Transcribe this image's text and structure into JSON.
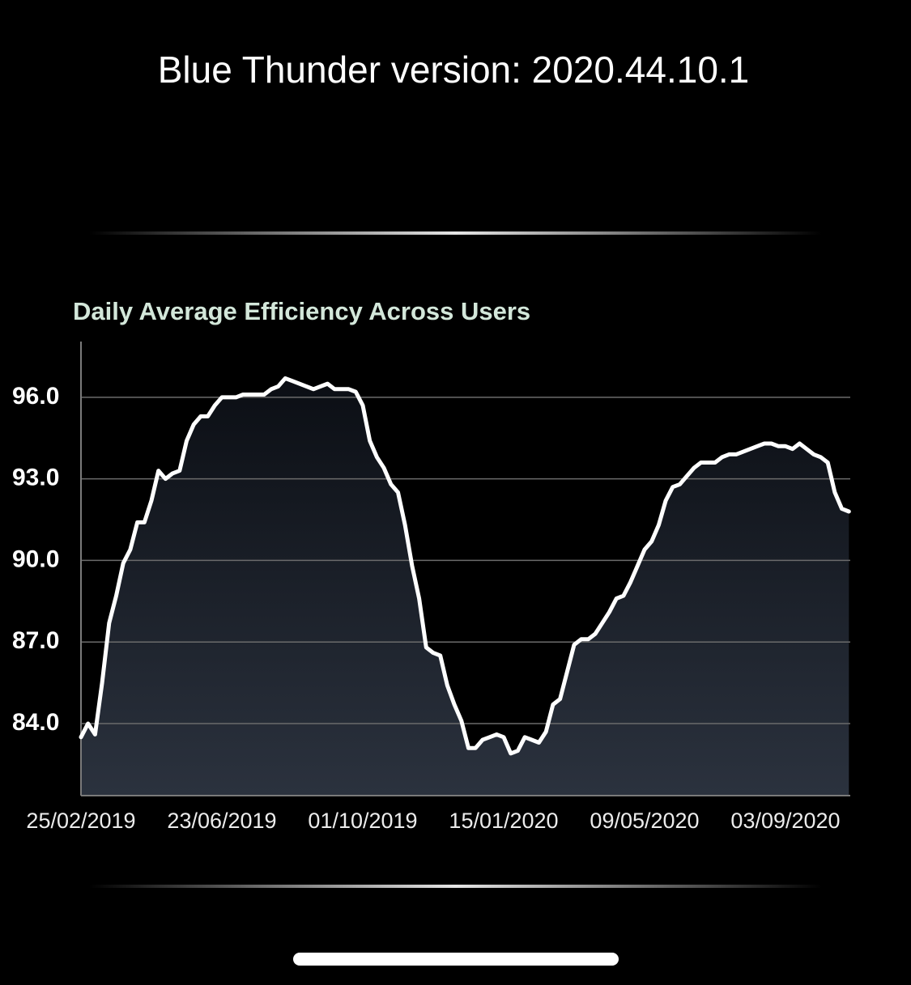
{
  "header": {
    "title": "Blue Thunder version: 2020.44.10.1"
  },
  "chart_data": {
    "type": "area",
    "title": "Daily Average Efficiency Across Users",
    "categories": [
      "25/02/2019",
      null,
      null,
      null,
      null,
      null,
      null,
      null,
      null,
      null,
      null,
      null,
      null,
      null,
      null,
      null,
      null,
      null,
      null,
      null,
      "23/06/2019",
      null,
      null,
      null,
      null,
      null,
      null,
      null,
      null,
      null,
      null,
      null,
      null,
      null,
      null,
      null,
      null,
      null,
      null,
      null,
      "01/10/2019",
      null,
      null,
      null,
      null,
      null,
      null,
      null,
      null,
      null,
      null,
      null,
      null,
      null,
      null,
      null,
      null,
      null,
      null,
      null,
      "15/01/2020",
      null,
      null,
      null,
      null,
      null,
      null,
      null,
      null,
      null,
      null,
      null,
      null,
      null,
      null,
      null,
      null,
      null,
      null,
      null,
      "09/05/2020",
      null,
      null,
      null,
      null,
      null,
      null,
      null,
      null,
      null,
      null,
      null,
      null,
      null,
      null,
      null,
      null,
      null,
      null,
      null,
      "03/09/2020",
      null,
      null,
      null,
      null,
      null,
      null,
      null,
      null,
      null
    ],
    "values": [
      83.5,
      84.0,
      83.6,
      85.5,
      87.7,
      88.7,
      89.9,
      90.4,
      91.4,
      91.4,
      92.2,
      93.3,
      93.0,
      93.2,
      93.3,
      94.4,
      95.0,
      95.3,
      95.3,
      95.7,
      96.0,
      96.0,
      96.0,
      96.1,
      96.1,
      96.1,
      96.1,
      96.3,
      96.4,
      96.7,
      96.6,
      96.5,
      96.4,
      96.3,
      96.4,
      96.5,
      96.3,
      96.3,
      96.3,
      96.2,
      95.7,
      94.4,
      93.8,
      93.4,
      92.8,
      92.5,
      91.3,
      89.8,
      88.6,
      86.8,
      86.6,
      86.5,
      85.4,
      84.7,
      84.1,
      83.1,
      83.1,
      83.4,
      83.5,
      83.6,
      83.5,
      82.9,
      83.0,
      83.5,
      83.4,
      83.3,
      83.7,
      84.7,
      84.9,
      85.9,
      86.9,
      87.1,
      87.1,
      87.3,
      87.7,
      88.1,
      88.6,
      88.7,
      89.2,
      89.8,
      90.4,
      90.7,
      91.3,
      92.2,
      92.7,
      92.8,
      93.1,
      93.4,
      93.6,
      93.6,
      93.6,
      93.8,
      93.9,
      93.9,
      94.0,
      94.1,
      94.2,
      94.3,
      94.3,
      94.2,
      94.2,
      94.1,
      94.3,
      94.1,
      93.9,
      93.8,
      93.6,
      92.5,
      91.9,
      91.8
    ],
    "color": "#ffffff",
    "ylim": [
      81.35,
      98.05
    ],
    "yticks": [
      {
        "value": 84,
        "label": "84.0"
      },
      {
        "value": 87,
        "label": "87.0"
      },
      {
        "value": 90,
        "label": "90.0"
      },
      {
        "value": 93,
        "label": "93.0"
      },
      {
        "value": 96,
        "label": "96.0"
      }
    ],
    "grid": true
  }
}
